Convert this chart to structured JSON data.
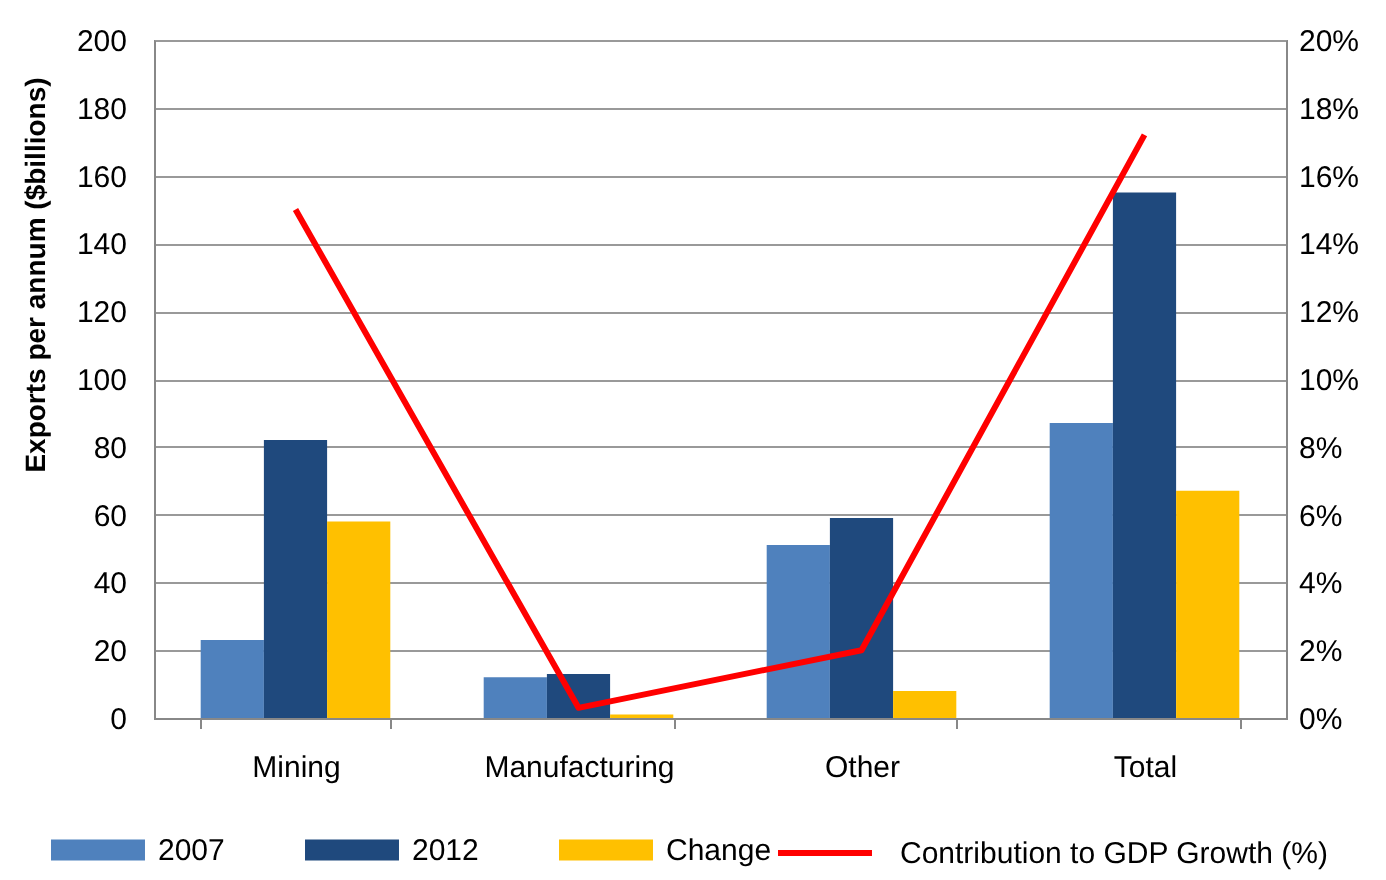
{
  "chart_data": {
    "type": "bar",
    "categories": [
      "Mining",
      "Manufacturing",
      "Other",
      "Total"
    ],
    "ylabel": "Exports per annum ($billions)",
    "series": [
      {
        "name": "2007",
        "color": "#4f81bd",
        "values": [
          23,
          12,
          51,
          87
        ]
      },
      {
        "name": "2012",
        "color": "#1f497d",
        "values": [
          82,
          13,
          59,
          155
        ]
      },
      {
        "name": "Change",
        "color": "#ffc000",
        "values": [
          58,
          1,
          8,
          67
        ]
      },
      {
        "name": "Contribution to GDP Growth (%)",
        "type": "line",
        "axis": "y2",
        "color": "#ff0000",
        "values": [
          15,
          0.3,
          2,
          17.2
        ]
      }
    ],
    "ylim": [
      0,
      200
    ],
    "yticks": [
      0,
      20,
      40,
      60,
      80,
      100,
      120,
      140,
      160,
      180,
      200
    ],
    "y2lim": [
      0,
      20
    ],
    "y2ticks": [
      {
        "value": 0,
        "label": "0%"
      },
      {
        "value": 2,
        "label": "2%"
      },
      {
        "value": 4,
        "label": "4%"
      },
      {
        "value": 6,
        "label": "6%"
      },
      {
        "value": 8,
        "label": "8%"
      },
      {
        "value": 10,
        "label": "10%"
      },
      {
        "value": 12,
        "label": "12%"
      },
      {
        "value": 14,
        "label": "14%"
      },
      {
        "value": 16,
        "label": "16%"
      },
      {
        "value": 18,
        "label": "18%"
      },
      {
        "value": 20,
        "label": "20%"
      }
    ],
    "grid": "y",
    "legend": "bottom"
  }
}
